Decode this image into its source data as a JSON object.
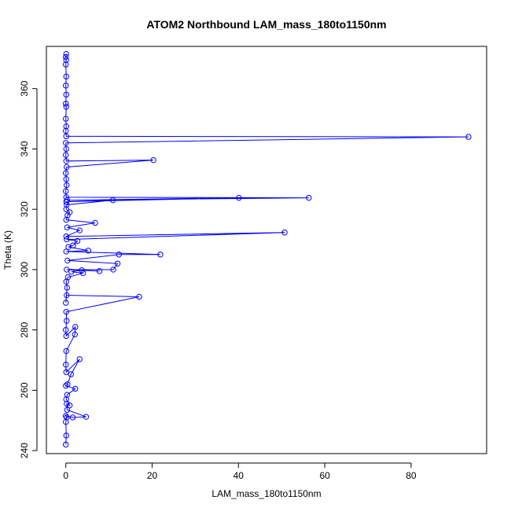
{
  "chart_data": {
    "type": "line",
    "title": "ATOM2 Northbound LAM_mass_180to1150nm",
    "xlabel": "LAM_mass_180to1150nm",
    "ylabel": "Theta (K)",
    "xlim": [
      -4.5,
      97.5
    ],
    "ylim": [
      239,
      374
    ],
    "xticks": [
      0,
      20,
      40,
      60,
      80
    ],
    "yticks": [
      240,
      260,
      280,
      300,
      320,
      340,
      360
    ],
    "grid": false,
    "legend": "none",
    "series": [
      {
        "color": "#0000ff",
        "marker": "open-circle",
        "points": [
          [
            0.0,
            242.0
          ],
          [
            0.1,
            245.0
          ],
          [
            0.0,
            249.5
          ],
          [
            0.2,
            251.0
          ],
          [
            0.0,
            251.5
          ],
          [
            1.6,
            251.0
          ],
          [
            4.7,
            251.2
          ],
          [
            0.3,
            253.5
          ],
          [
            0.2,
            255.5
          ],
          [
            0.9,
            255.0
          ],
          [
            0.1,
            257.0
          ],
          [
            0.3,
            258.5
          ],
          [
            2.2,
            260.5
          ],
          [
            0.0,
            261.5
          ],
          [
            0.4,
            262.0
          ],
          [
            1.2,
            265.3
          ],
          [
            3.2,
            270.3
          ],
          [
            0.1,
            266.0
          ],
          [
            0.0,
            268.5
          ],
          [
            0.1,
            273.0
          ],
          [
            2.1,
            278.5
          ],
          [
            2.2,
            281.0
          ],
          [
            0.1,
            278.0
          ],
          [
            0.0,
            280.0
          ],
          [
            0.2,
            283.0
          ],
          [
            0.1,
            286.0
          ],
          [
            17.0,
            291.0
          ],
          [
            0.2,
            291.5
          ],
          [
            0.0,
            289.0
          ],
          [
            0.3,
            294.0
          ],
          [
            0.1,
            296.0
          ],
          [
            0.5,
            297.5
          ],
          [
            4.0,
            298.8
          ],
          [
            1.3,
            299.3
          ],
          [
            3.7,
            299.8
          ],
          [
            7.8,
            299.5
          ],
          [
            0.2,
            300.0
          ],
          [
            11.0,
            300.0
          ],
          [
            12.0,
            302.0
          ],
          [
            0.4,
            303.0
          ],
          [
            12.3,
            305.0
          ],
          [
            21.9,
            305.0
          ],
          [
            0.1,
            306.0
          ],
          [
            5.2,
            306.3
          ],
          [
            0.6,
            307.5
          ],
          [
            1.7,
            308.0
          ],
          [
            2.7,
            309.5
          ],
          [
            0.2,
            310.0
          ],
          [
            50.7,
            312.3
          ],
          [
            0.1,
            311.0
          ],
          [
            3.2,
            313.0
          ],
          [
            0.3,
            314.0
          ],
          [
            6.8,
            315.5
          ],
          [
            0.1,
            316.5
          ],
          [
            0.4,
            318.0
          ],
          [
            0.9,
            319.0
          ],
          [
            0.1,
            320.0
          ],
          [
            0.2,
            321.5
          ],
          [
            10.9,
            323.0
          ],
          [
            0.1,
            322.5
          ],
          [
            40.1,
            323.8
          ],
          [
            0.3,
            323.0
          ],
          [
            56.3,
            323.8
          ],
          [
            0.1,
            324.0
          ],
          [
            0.0,
            326.0
          ],
          [
            0.2,
            328.0
          ],
          [
            0.1,
            330.0
          ],
          [
            0.0,
            332.0
          ],
          [
            0.2,
            334.0
          ],
          [
            20.3,
            336.3
          ],
          [
            0.1,
            336.0
          ],
          [
            0.0,
            338.0
          ],
          [
            0.1,
            340.0
          ],
          [
            0.0,
            342.0
          ],
          [
            93.3,
            344.0
          ],
          [
            0.1,
            344.2
          ],
          [
            0.0,
            346.0
          ],
          [
            0.1,
            347.5
          ],
          [
            0.0,
            350.0
          ],
          [
            0.1,
            354.0
          ],
          [
            0.0,
            355.0
          ],
          [
            0.1,
            358.0
          ],
          [
            0.0,
            361.0
          ],
          [
            0.1,
            364.0
          ],
          [
            0.0,
            368.0
          ],
          [
            0.1,
            369.5
          ],
          [
            0.0,
            370.5
          ],
          [
            0.1,
            371.5
          ]
        ]
      }
    ]
  }
}
